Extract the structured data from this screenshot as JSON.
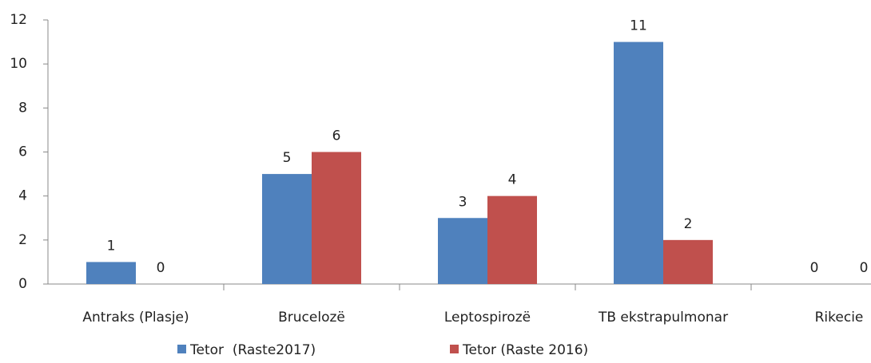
{
  "chart_data": {
    "type": "bar",
    "categories": [
      "Antraks (Plasje)",
      "Brucelozë",
      "Leptospirozë",
      "TB ekstrapulmonar",
      "Rikecie"
    ],
    "series": [
      {
        "name": "Tetor  (Raste2017)",
        "color": "#4f81bd",
        "values": [
          1,
          5,
          3,
          11,
          0
        ]
      },
      {
        "name": "Tetor (Raste 2016)",
        "color": "#c0504d",
        "values": [
          0,
          6,
          4,
          2,
          0
        ]
      }
    ],
    "ylim": [
      0,
      12
    ],
    "yticks": [
      0,
      2,
      4,
      6,
      8,
      10,
      12
    ],
    "grid": false,
    "legend": "bottom"
  }
}
